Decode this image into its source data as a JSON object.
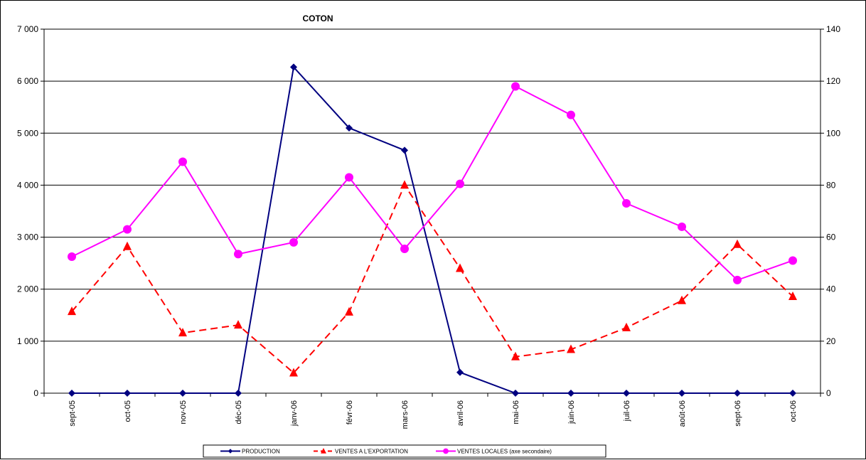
{
  "chart_data": {
    "type": "line",
    "title": "COTON",
    "categories": [
      "sept-05",
      "oct-05",
      "nov-05",
      "déc-05",
      "janv-06",
      "févr-06",
      "mars-06",
      "avril-06",
      "mai-06",
      "juin-06",
      "juil-06",
      "août-06",
      "sept-06",
      "oct-06"
    ],
    "y_left": {
      "min": 0,
      "max": 7000,
      "ticks": [
        0,
        1000,
        2000,
        3000,
        4000,
        5000,
        6000,
        7000
      ],
      "tick_labels": [
        "0",
        "1 000",
        "2 000",
        "3 000",
        "4 000",
        "5 000",
        "6 000",
        "7 000"
      ]
    },
    "y_right": {
      "min": 0,
      "max": 140,
      "ticks": [
        0,
        20,
        40,
        60,
        80,
        100,
        120,
        140
      ],
      "tick_labels": [
        "0",
        "20",
        "40",
        "60",
        "80",
        "100",
        "120",
        "140"
      ]
    },
    "grid": true,
    "legend_position": "bottom",
    "series": [
      {
        "name": "PRODUCTION",
        "axis": "left",
        "color": "#000080",
        "dash": false,
        "marker": "diamond",
        "values": [
          0,
          0,
          0,
          0,
          6270,
          5100,
          4670,
          400,
          0,
          0,
          0,
          0,
          0,
          0
        ]
      },
      {
        "name": "VENTES A L'EXPORTATION",
        "axis": "left",
        "color": "#ff0000",
        "dash": true,
        "marker": "triangle",
        "values": [
          1570,
          2820,
          1160,
          1310,
          390,
          1560,
          4000,
          2400,
          700,
          840,
          1260,
          1780,
          2860,
          1860
        ]
      },
      {
        "name": "VENTES LOCALES (axe secondaire)",
        "axis": "right",
        "color": "#ff00ff",
        "dash": false,
        "marker": "circle",
        "values": [
          52.5,
          63,
          89,
          53.5,
          58,
          83,
          55.5,
          80.5,
          118,
          107,
          73,
          64,
          43.5,
          51
        ]
      }
    ]
  }
}
